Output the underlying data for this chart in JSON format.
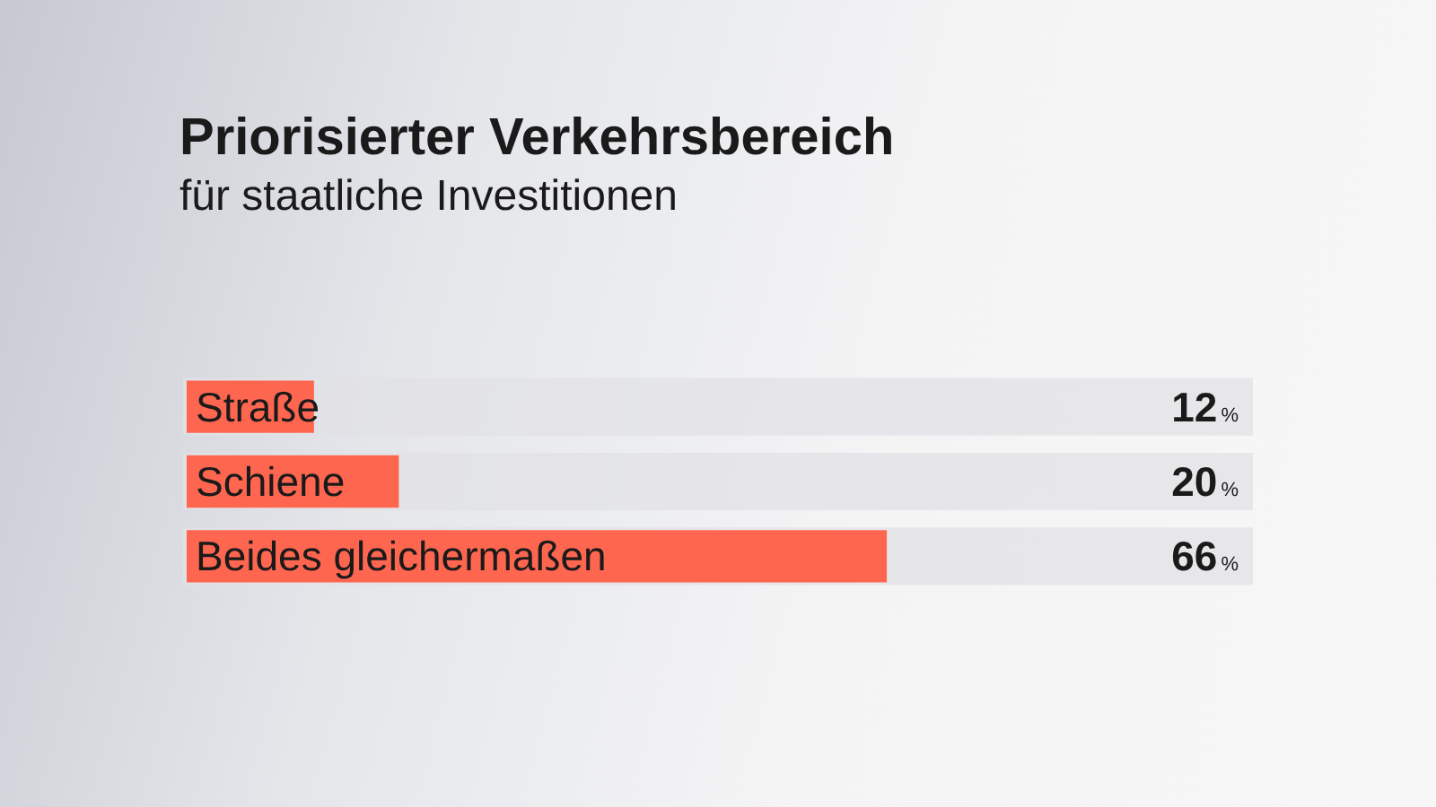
{
  "chart_data": {
    "type": "bar",
    "orientation": "horizontal",
    "title": "Priorisierter Verkehrsbereich",
    "subtitle": "für staatliche Investitionen",
    "categories": [
      "Straße",
      "Schiene",
      "Beides gleichermaßen"
    ],
    "values": [
      12,
      20,
      66
    ],
    "color": "#ff6650",
    "value_labels": [
      "12%",
      "20%",
      "66%"
    ],
    "xlim": [
      0,
      100
    ],
    "tick_labels": "y"
  }
}
